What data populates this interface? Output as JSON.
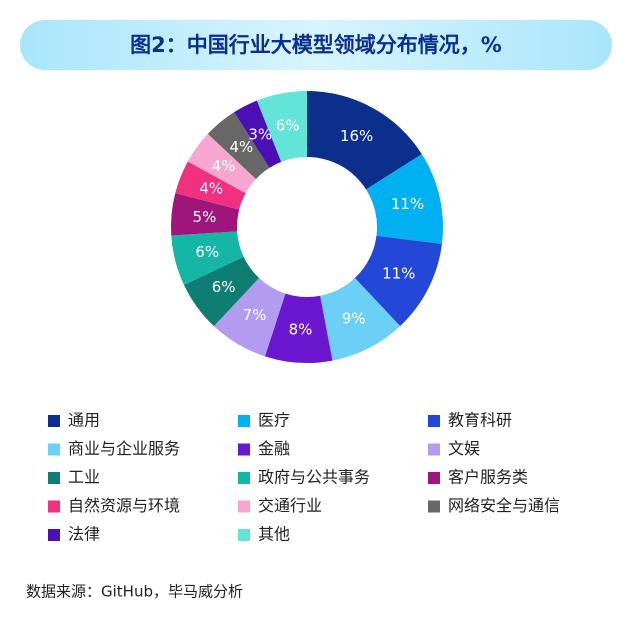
{
  "chart_data": {
    "type": "donut",
    "title": "图2：中国行业大模型领域分布情况，%",
    "categories": [
      "通用",
      "医疗",
      "教育科研",
      "商业与企业服务",
      "金融",
      "文娱",
      "工业",
      "政府与公共事务",
      "客户服务类",
      "自然资源与环境",
      "交通行业",
      "网络安全与通信",
      "法律",
      "其他"
    ],
    "values": [
      16,
      11,
      11,
      9,
      8,
      7,
      6,
      6,
      5,
      4,
      4,
      4,
      3,
      6
    ],
    "value_labels": [
      "16%",
      "11%",
      "11%",
      "9%",
      "8%",
      "7%",
      "6%",
      "6%",
      "5%",
      "4%",
      "4%",
      "4%",
      "3%",
      "6%"
    ],
    "colors": [
      "#0b2f8a",
      "#00b0f0",
      "#2347d6",
      "#6ccff6",
      "#6a17cf",
      "#b29cf0",
      "#0e7e73",
      "#15b6a6",
      "#a0157b",
      "#f0317f",
      "#f7a6cf",
      "#676767",
      "#4a10b6",
      "#62e4d8"
    ],
    "source": "数据来源：GitHub，毕马威分析"
  }
}
